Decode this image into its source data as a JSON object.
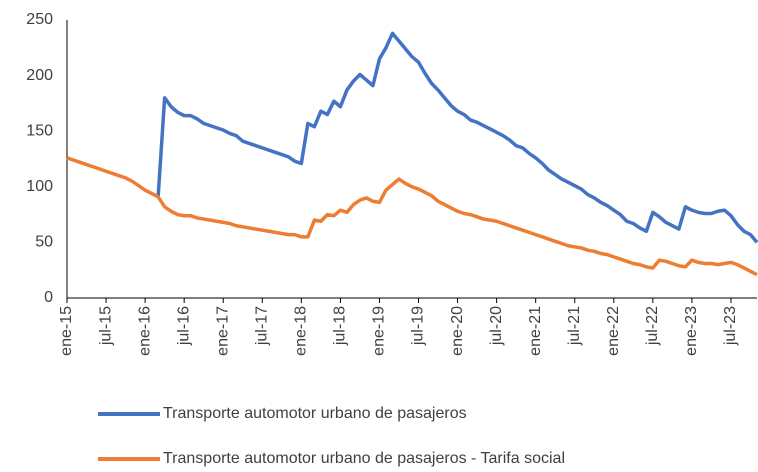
{
  "chart_data": {
    "type": "line",
    "categories": [
      "ene-15",
      null,
      null,
      null,
      null,
      null,
      "jul-15",
      null,
      null,
      null,
      null,
      null,
      "ene-16",
      null,
      null,
      null,
      null,
      null,
      "jul-16",
      null,
      null,
      null,
      null,
      null,
      "ene-17",
      null,
      null,
      null,
      null,
      null,
      "jul-17",
      null,
      null,
      null,
      null,
      null,
      "ene-18",
      null,
      null,
      null,
      null,
      null,
      "jul-18",
      null,
      null,
      null,
      null,
      null,
      "ene-19",
      null,
      null,
      null,
      null,
      null,
      "jul-19",
      null,
      null,
      null,
      null,
      null,
      "ene-20",
      null,
      null,
      null,
      null,
      null,
      "jul-20",
      null,
      null,
      null,
      null,
      null,
      "ene-21",
      null,
      null,
      null,
      null,
      null,
      "jul-21",
      null,
      null,
      null,
      null,
      null,
      "ene-22",
      null,
      null,
      null,
      null,
      null,
      "jul-22",
      null,
      null,
      null,
      null,
      null,
      "ene-23",
      null,
      null,
      null,
      null,
      null,
      "jul-23",
      null,
      null,
      null,
      null
    ],
    "series": [
      {
        "name": "Transporte automotor urbano de pasajeros",
        "color": "#4472c4",
        "values": [
          null,
          null,
          null,
          null,
          null,
          null,
          null,
          null,
          null,
          null,
          null,
          null,
          null,
          null,
          91,
          180,
          172,
          167,
          164,
          164,
          161,
          157,
          155,
          153,
          151,
          148,
          146,
          141,
          139,
          137,
          135,
          133,
          131,
          129,
          127,
          123,
          121,
          157,
          154,
          168,
          165,
          177,
          172,
          187,
          195,
          201,
          196,
          191,
          215,
          225,
          238,
          231,
          224,
          217,
          212,
          202,
          193,
          187,
          180,
          173,
          168,
          165,
          160,
          158,
          155,
          152,
          149,
          146,
          142,
          137,
          135,
          130,
          126,
          121,
          115,
          111,
          107,
          104,
          101,
          98,
          93,
          90,
          86,
          83,
          79,
          75,
          69,
          67,
          63,
          60,
          77,
          73,
          68,
          65,
          62,
          82,
          79,
          77,
          76,
          76,
          78,
          79,
          74,
          66,
          60,
          57,
          50
        ]
      },
      {
        "name": "Transporte automotor urbano de pasajeros - Tarifa social",
        "color": "#ed7d31",
        "values": [
          126,
          124,
          122,
          120,
          118,
          116,
          114,
          112,
          110,
          108,
          105,
          101,
          97,
          94,
          91,
          82,
          78,
          75,
          74,
          74,
          72,
          71,
          70,
          69,
          68,
          67,
          65,
          64,
          63,
          62,
          61,
          60,
          59,
          58,
          57,
          57,
          55,
          55,
          70,
          69,
          75,
          74,
          79,
          77,
          84,
          88,
          90,
          87,
          86,
          97,
          102,
          107,
          103,
          100,
          98,
          95,
          92,
          87,
          84,
          81,
          78,
          76,
          75,
          73,
          71,
          70,
          69,
          67,
          65,
          63,
          61,
          59,
          57,
          55,
          53,
          51,
          49,
          47,
          46,
          45,
          43,
          42,
          40,
          39,
          37,
          35,
          33,
          31,
          30,
          28,
          27,
          34,
          33,
          31,
          29,
          28,
          34,
          32,
          31,
          31,
          30,
          31,
          32,
          30,
          27,
          24,
          21
        ]
      }
    ],
    "ylim": [
      0,
      250
    ],
    "yticks": [
      0,
      50,
      100,
      150,
      200,
      250
    ],
    "grid": false,
    "legend": "bottom"
  }
}
